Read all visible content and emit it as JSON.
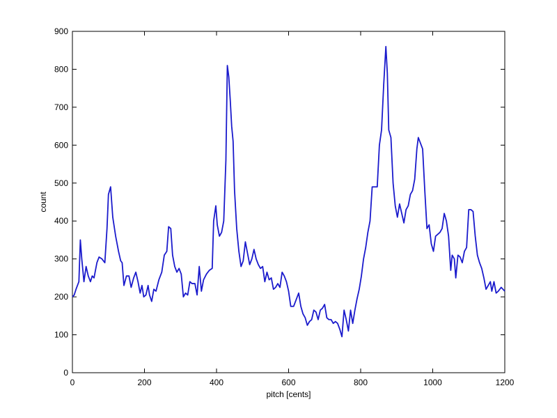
{
  "chart_data": {
    "type": "line",
    "xlabel": "pitch [cents]",
    "ylabel": "count",
    "color": "#1a1acc",
    "x": [
      0,
      5,
      10,
      18,
      22,
      26,
      32,
      38,
      44,
      50,
      55,
      60,
      68,
      74,
      82,
      90,
      96,
      100,
      106,
      112,
      120,
      128,
      134,
      138,
      143,
      150,
      157,
      163,
      170,
      176,
      182,
      188,
      193,
      198,
      204,
      210,
      214,
      220,
      226,
      232,
      240,
      248,
      255,
      262,
      267,
      273,
      278,
      284,
      290,
      296,
      302,
      308,
      314,
      320,
      326,
      332,
      340,
      346,
      352,
      358,
      364,
      372,
      380,
      388,
      392,
      398,
      402,
      408,
      414,
      420,
      426,
      430,
      434,
      438,
      442,
      446,
      450,
      456,
      462,
      468,
      474,
      480,
      486,
      492,
      498,
      504,
      510,
      516,
      522,
      528,
      534,
      540,
      546,
      552,
      558,
      564,
      570,
      576,
      582,
      588,
      594,
      600,
      606,
      614,
      620,
      628,
      634,
      640,
      646,
      652,
      658,
      664,
      670,
      676,
      682,
      688,
      694,
      700,
      706,
      712,
      718,
      724,
      730,
      736,
      742,
      748,
      754,
      760,
      766,
      772,
      778,
      784,
      790,
      796,
      802,
      808,
      814,
      820,
      826,
      832,
      840,
      846,
      852,
      858,
      864,
      870,
      874,
      878,
      884,
      890,
      896,
      902,
      908,
      914,
      920,
      926,
      932,
      938,
      944,
      950,
      956,
      960,
      966,
      972,
      978,
      984,
      990,
      996,
      1002,
      1008,
      1014,
      1020,
      1026,
      1032,
      1038,
      1044,
      1050,
      1054,
      1060,
      1064,
      1070,
      1076,
      1082,
      1088,
      1094,
      1100,
      1106,
      1112,
      1118,
      1124,
      1130,
      1136,
      1142,
      1148,
      1154,
      1160,
      1164,
      1170,
      1176,
      1182,
      1190,
      1200
    ],
    "values": [
      200,
      205,
      220,
      240,
      350,
      300,
      240,
      280,
      255,
      240,
      255,
      250,
      290,
      305,
      300,
      290,
      380,
      470,
      490,
      410,
      360,
      320,
      295,
      290,
      230,
      255,
      255,
      225,
      250,
      265,
      240,
      210,
      230,
      200,
      205,
      230,
      205,
      188,
      220,
      215,
      245,
      265,
      310,
      320,
      385,
      380,
      310,
      280,
      265,
      275,
      260,
      200,
      210,
      205,
      240,
      235,
      235,
      205,
      280,
      215,
      245,
      260,
      270,
      275,
      400,
      440,
      390,
      360,
      370,
      400,
      560,
      810,
      780,
      720,
      650,
      610,
      480,
      380,
      320,
      280,
      295,
      345,
      315,
      285,
      300,
      325,
      300,
      285,
      275,
      280,
      240,
      265,
      245,
      250,
      220,
      225,
      235,
      225,
      265,
      255,
      240,
      215,
      175,
      175,
      190,
      210,
      175,
      155,
      145,
      125,
      135,
      140,
      165,
      160,
      140,
      165,
      170,
      180,
      145,
      140,
      140,
      130,
      135,
      130,
      115,
      95,
      165,
      140,
      110,
      165,
      130,
      165,
      195,
      220,
      255,
      300,
      330,
      370,
      400,
      490,
      490,
      490,
      600,
      640,
      760,
      860,
      790,
      640,
      620,
      500,
      440,
      410,
      445,
      420,
      395,
      430,
      440,
      470,
      480,
      510,
      590,
      620,
      605,
      590,
      480,
      380,
      390,
      340,
      320,
      360,
      365,
      370,
      380,
      420,
      400,
      360,
      270,
      310,
      300,
      250,
      310,
      305,
      290,
      320,
      330,
      430,
      430,
      425,
      360,
      310,
      290,
      275,
      250,
      220,
      230,
      240,
      215,
      240,
      210,
      215,
      225,
      215
    ],
    "xlim": [
      0,
      1200
    ],
    "xticks": [
      0,
      200,
      400,
      600,
      800,
      1000,
      1200
    ],
    "ylim": [
      0,
      900
    ],
    "yticks": [
      0,
      100,
      200,
      300,
      400,
      500,
      600,
      700,
      800,
      900
    ]
  }
}
